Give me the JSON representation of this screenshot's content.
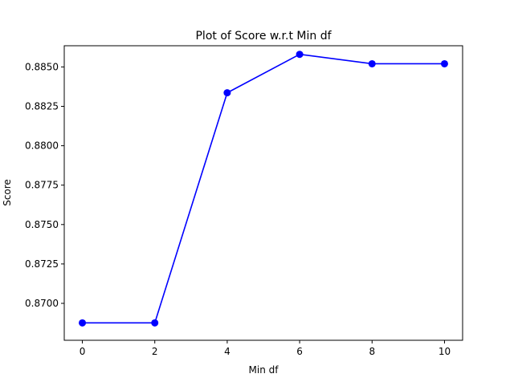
{
  "chart_data": {
    "type": "line",
    "title": "Plot of Score w.r.t Min df",
    "xlabel": "Min df",
    "ylabel": "Score",
    "x": [
      0,
      2,
      4,
      6,
      8,
      10
    ],
    "series": [
      {
        "values": [
          0.86876,
          0.86876,
          0.88336,
          0.8858,
          0.8852,
          0.8852
        ],
        "color": "#0000ff",
        "marker": "circle"
      }
    ],
    "xticks": [
      0,
      2,
      4,
      6,
      8,
      10
    ],
    "xtick_labels": [
      "0",
      "2",
      "4",
      "6",
      "8",
      "10"
    ],
    "yticks": [
      0.87,
      0.8725,
      0.875,
      0.8775,
      0.88,
      0.8825,
      0.885
    ],
    "ytick_labels": [
      "0.8700",
      "0.8725",
      "0.8750",
      "0.8775",
      "0.8800",
      "0.8825",
      "0.8850"
    ],
    "xlim": [
      -0.5,
      10.5
    ],
    "ylim": [
      0.86841,
      0.86866
    ],
    "grid": false,
    "legend": false
  }
}
